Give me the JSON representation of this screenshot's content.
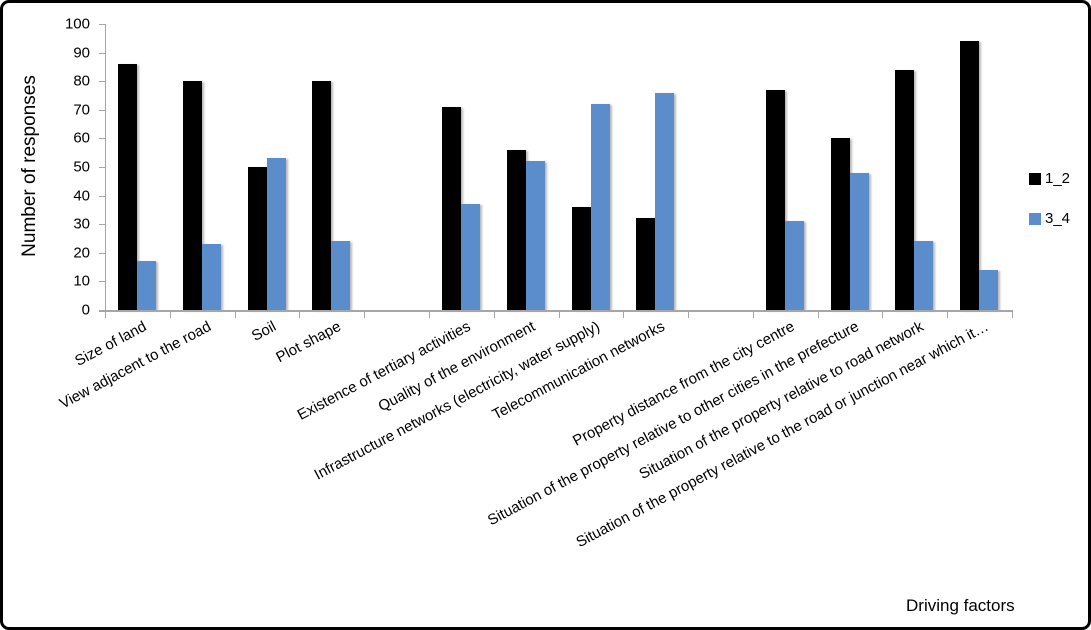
{
  "chart_data": {
    "type": "bar",
    "title": "",
    "xlabel": "Driving factors",
    "ylabel": "Number of responses",
    "ylim": [
      0,
      100
    ],
    "y_ticks": [
      0,
      10,
      20,
      30,
      40,
      50,
      60,
      70,
      80,
      90,
      100
    ],
    "grid": false,
    "legend_position": "right",
    "categories": [
      "Size of land",
      "View adjacent to the road",
      "Soil",
      "Plot shape",
      "Existence of tertiary activities",
      "Quality of the environment",
      "Infrastructure networks (electricity, water supply)",
      "Telecommunication networks",
      "Property distance from the city centre",
      "Situation of the property relative to other cities in the prefecture",
      "Situation of the property relative to road network",
      "Situation of the property relative to the road or junction near which it…"
    ],
    "series": [
      {
        "name": "1_2",
        "color": "#000000",
        "values": [
          86,
          80,
          50,
          80,
          71,
          56,
          36,
          32,
          77,
          60,
          84,
          94
        ]
      },
      {
        "name": "3_4",
        "color": "#5B8CCB",
        "values": [
          17,
          23,
          53,
          24,
          37,
          52,
          72,
          76,
          31,
          48,
          24,
          14
        ]
      }
    ]
  }
}
